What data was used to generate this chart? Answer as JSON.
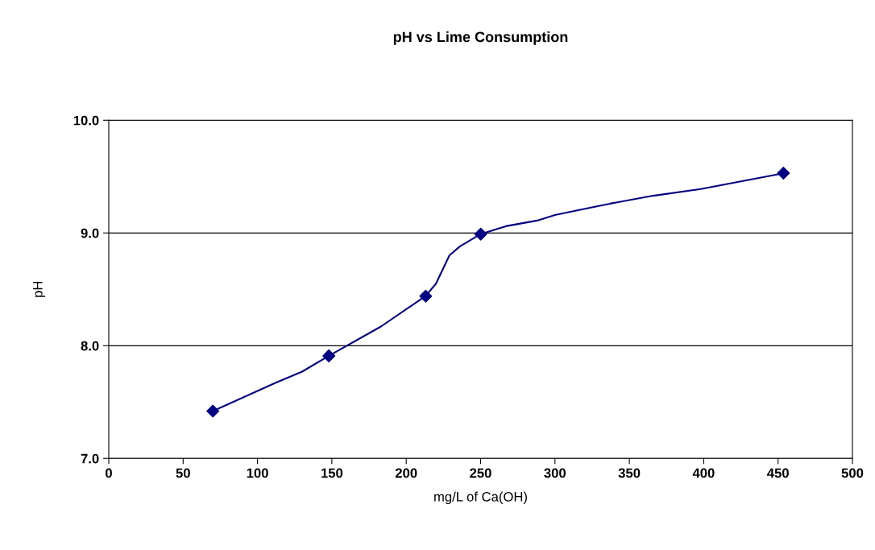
{
  "chart_data": {
    "type": "line",
    "title": "pH vs Lime Consumption",
    "xlabel": "mg/L of Ca(OH)",
    "ylabel": "pH",
    "series": [
      {
        "color": "#000080",
        "marker": "none",
        "x": [
          70,
          112,
          130,
          148,
          183,
          213,
          220,
          229,
          236,
          250,
          267,
          288,
          300,
          315,
          337,
          366,
          398,
          453.6
        ],
        "values": [
          7.42,
          7.67,
          7.77,
          7.91,
          8.17,
          8.44,
          8.55,
          8.8,
          8.88,
          8.99,
          9.06,
          9.11,
          9.16,
          9.2,
          9.26,
          9.33,
          9.39,
          9.53
        ]
      },
      {
        "type": "scatter",
        "color": "#000080",
        "marker": "diamond",
        "x": [
          70,
          148,
          213.1,
          250.1,
          453.6
        ],
        "values": [
          7.42,
          7.91,
          8.44,
          8.99,
          9.53
        ]
      }
    ],
    "xlim": [
      0,
      500
    ],
    "xticks": [
      0,
      50,
      100,
      150,
      200,
      250,
      300,
      350,
      400,
      450,
      500
    ],
    "ylim": [
      7.0,
      10.0
    ],
    "yticks": [
      {
        "value": 7,
        "label": "7.0"
      },
      {
        "value": 8,
        "label": "8.0"
      },
      {
        "value": 9,
        "label": "9.0"
      },
      {
        "value": 10,
        "label": "10.0"
      }
    ],
    "grid": "y"
  }
}
